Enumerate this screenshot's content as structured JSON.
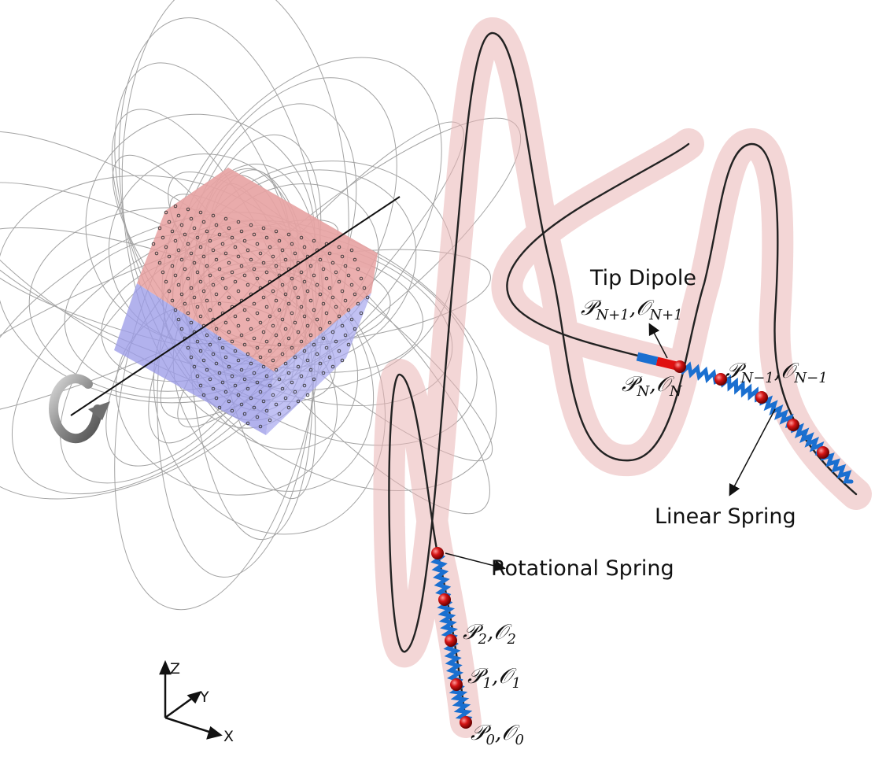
{
  "labels": {
    "tip_dipole": "Tip Dipole",
    "tip_node": "𝒫N+1,𝒪N+1",
    "node_n": "𝒫N,𝒪N",
    "node_n_minus_1": "𝒫N−1,𝒪N−1",
    "linear_spring": "Linear Spring",
    "rotational_spring": "Rotational Spring",
    "node_2": "𝒫2,𝒪2",
    "node_1": "𝒫1,𝒪1",
    "node_0": "𝒫0,𝒪0"
  },
  "label_parts": {
    "tip": {
      "main": "𝒫",
      "sub": "N+1",
      "sep": ",",
      "main2": "𝒪",
      "sub2": "N+1"
    },
    "n": {
      "main": "𝒫",
      "sub": "N",
      "sep": ",",
      "main2": "𝒪",
      "sub2": "N"
    },
    "nm1": {
      "main": "𝒫",
      "sub": "N−1",
      "sep": ",",
      "main2": "𝒪",
      "sub2": "N−1"
    },
    "p2": {
      "main": "𝒫",
      "sub": "2",
      "sep": ",",
      "main2": "𝒪",
      "sub2": "2"
    },
    "p1": {
      "main": "𝒫",
      "sub": "1",
      "sep": ",",
      "main2": "𝒪",
      "sub2": "1"
    },
    "p0": {
      "main": "𝒫",
      "sub": "0",
      "sep": ",",
      "main2": "𝒪",
      "sub2": "0"
    }
  },
  "axes": {
    "z": "Z",
    "y": "Y",
    "x": "X"
  },
  "colors": {
    "tube": "#e8b0b0",
    "magnet_top": "#e59a9a",
    "magnet_bottom": "#9a9ae8",
    "node": "#cc1010",
    "spring": "#1a6fd0",
    "dipole_north": "#e01010",
    "dipole_south": "#1a6fd0",
    "field_line": "#a0a0a0"
  }
}
